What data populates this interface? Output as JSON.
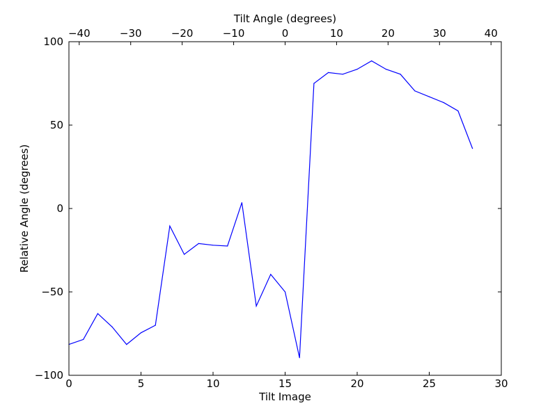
{
  "chart_data": {
    "type": "line",
    "xlabel": "Tilt Image",
    "ylabel": "Relative Angle (degrees)",
    "top_xlabel": "Tilt Angle (degrees)",
    "xlim": [
      0,
      30
    ],
    "ylim": [
      -100,
      100
    ],
    "top_xlim": [
      -42,
      42
    ],
    "x_ticks": [
      0,
      5,
      10,
      15,
      20,
      25,
      30
    ],
    "y_ticks": [
      -100,
      -50,
      0,
      50,
      100
    ],
    "top_x_ticks": [
      -40,
      -30,
      -20,
      -10,
      0,
      10,
      20,
      30,
      40
    ],
    "x_tick_labels": [
      "0",
      "5",
      "10",
      "15",
      "20",
      "25",
      "30"
    ],
    "y_tick_labels": [
      "−100",
      "−50",
      "0",
      "50",
      "100"
    ],
    "top_x_tick_labels": [
      "−40",
      "−30",
      "−20",
      "−10",
      "0",
      "10",
      "20",
      "30",
      "40"
    ],
    "grid": false,
    "line_color": "#0000ff",
    "series": [
      {
        "x": [
          0,
          1,
          2,
          3,
          4,
          5,
          6,
          7,
          8,
          9,
          10,
          11,
          12,
          13,
          14,
          15,
          16,
          17,
          18,
          19,
          20,
          21,
          22,
          23,
          24,
          25,
          26,
          27,
          28
        ],
        "values": [
          -81.5,
          -78.5,
          -63,
          -71,
          -81.5,
          -74.5,
          -70,
          -10.5,
          -27.5,
          -21,
          -22,
          -22.5,
          3.5,
          -58.5,
          -39.5,
          -50,
          -89.5,
          75,
          81.5,
          80.5,
          83.5,
          88.5,
          83.5,
          80.5,
          70.5,
          67,
          63.5,
          58.5,
          36
        ]
      }
    ]
  }
}
